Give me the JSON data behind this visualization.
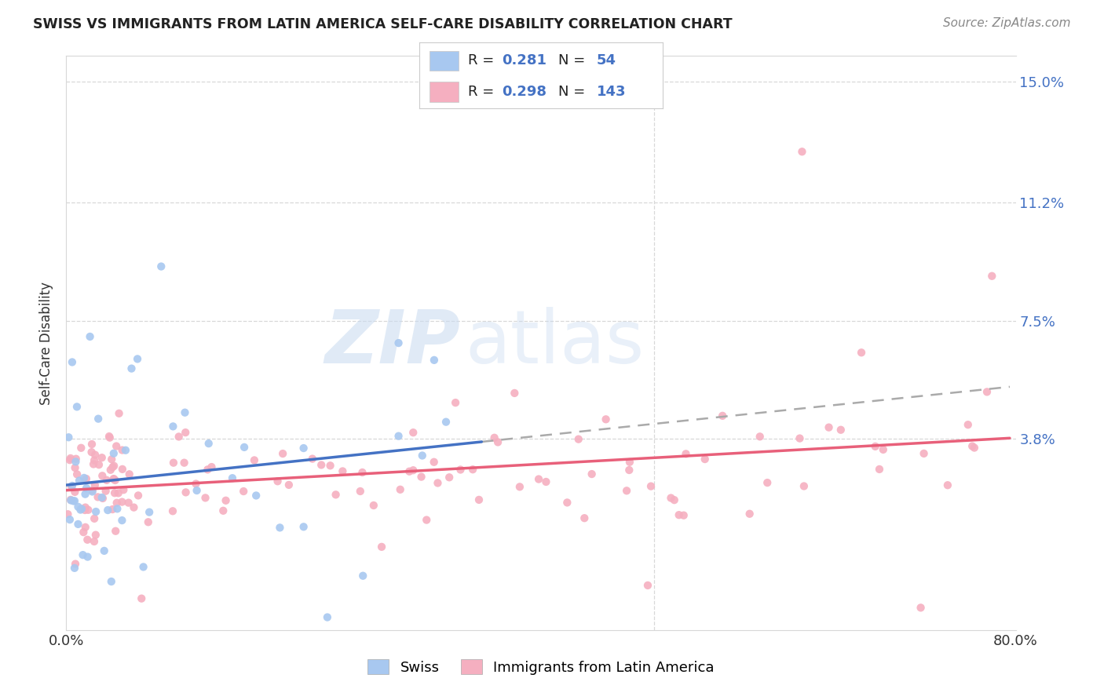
{
  "title": "SWISS VS IMMIGRANTS FROM LATIN AMERICA SELF-CARE DISABILITY CORRELATION CHART",
  "source": "Source: ZipAtlas.com",
  "ylabel": "Self-Care Disability",
  "ytick_vals": [
    0.15,
    0.112,
    0.075,
    0.038
  ],
  "ytick_labels": [
    "15.0%",
    "11.2%",
    "7.5%",
    "3.8%"
  ],
  "xlim": [
    0.0,
    0.8
  ],
  "ylim": [
    -0.022,
    0.158
  ],
  "swiss_color": "#a8c8f0",
  "latin_color": "#f5afc0",
  "swiss_line_color": "#4472c4",
  "latin_line_color": "#e8607a",
  "dash_color": "#aaaaaa",
  "legend_swiss_R": "0.281",
  "legend_swiss_N": "54",
  "legend_latin_R": "0.298",
  "legend_latin_N": "143",
  "watermark_zip": "ZIP",
  "watermark_atlas": "atlas",
  "bg_color": "#ffffff",
  "grid_color": "#d8d8d8",
  "right_label_color": "#4472c4",
  "title_color": "#222222",
  "source_color": "#888888",
  "ylabel_color": "#333333"
}
